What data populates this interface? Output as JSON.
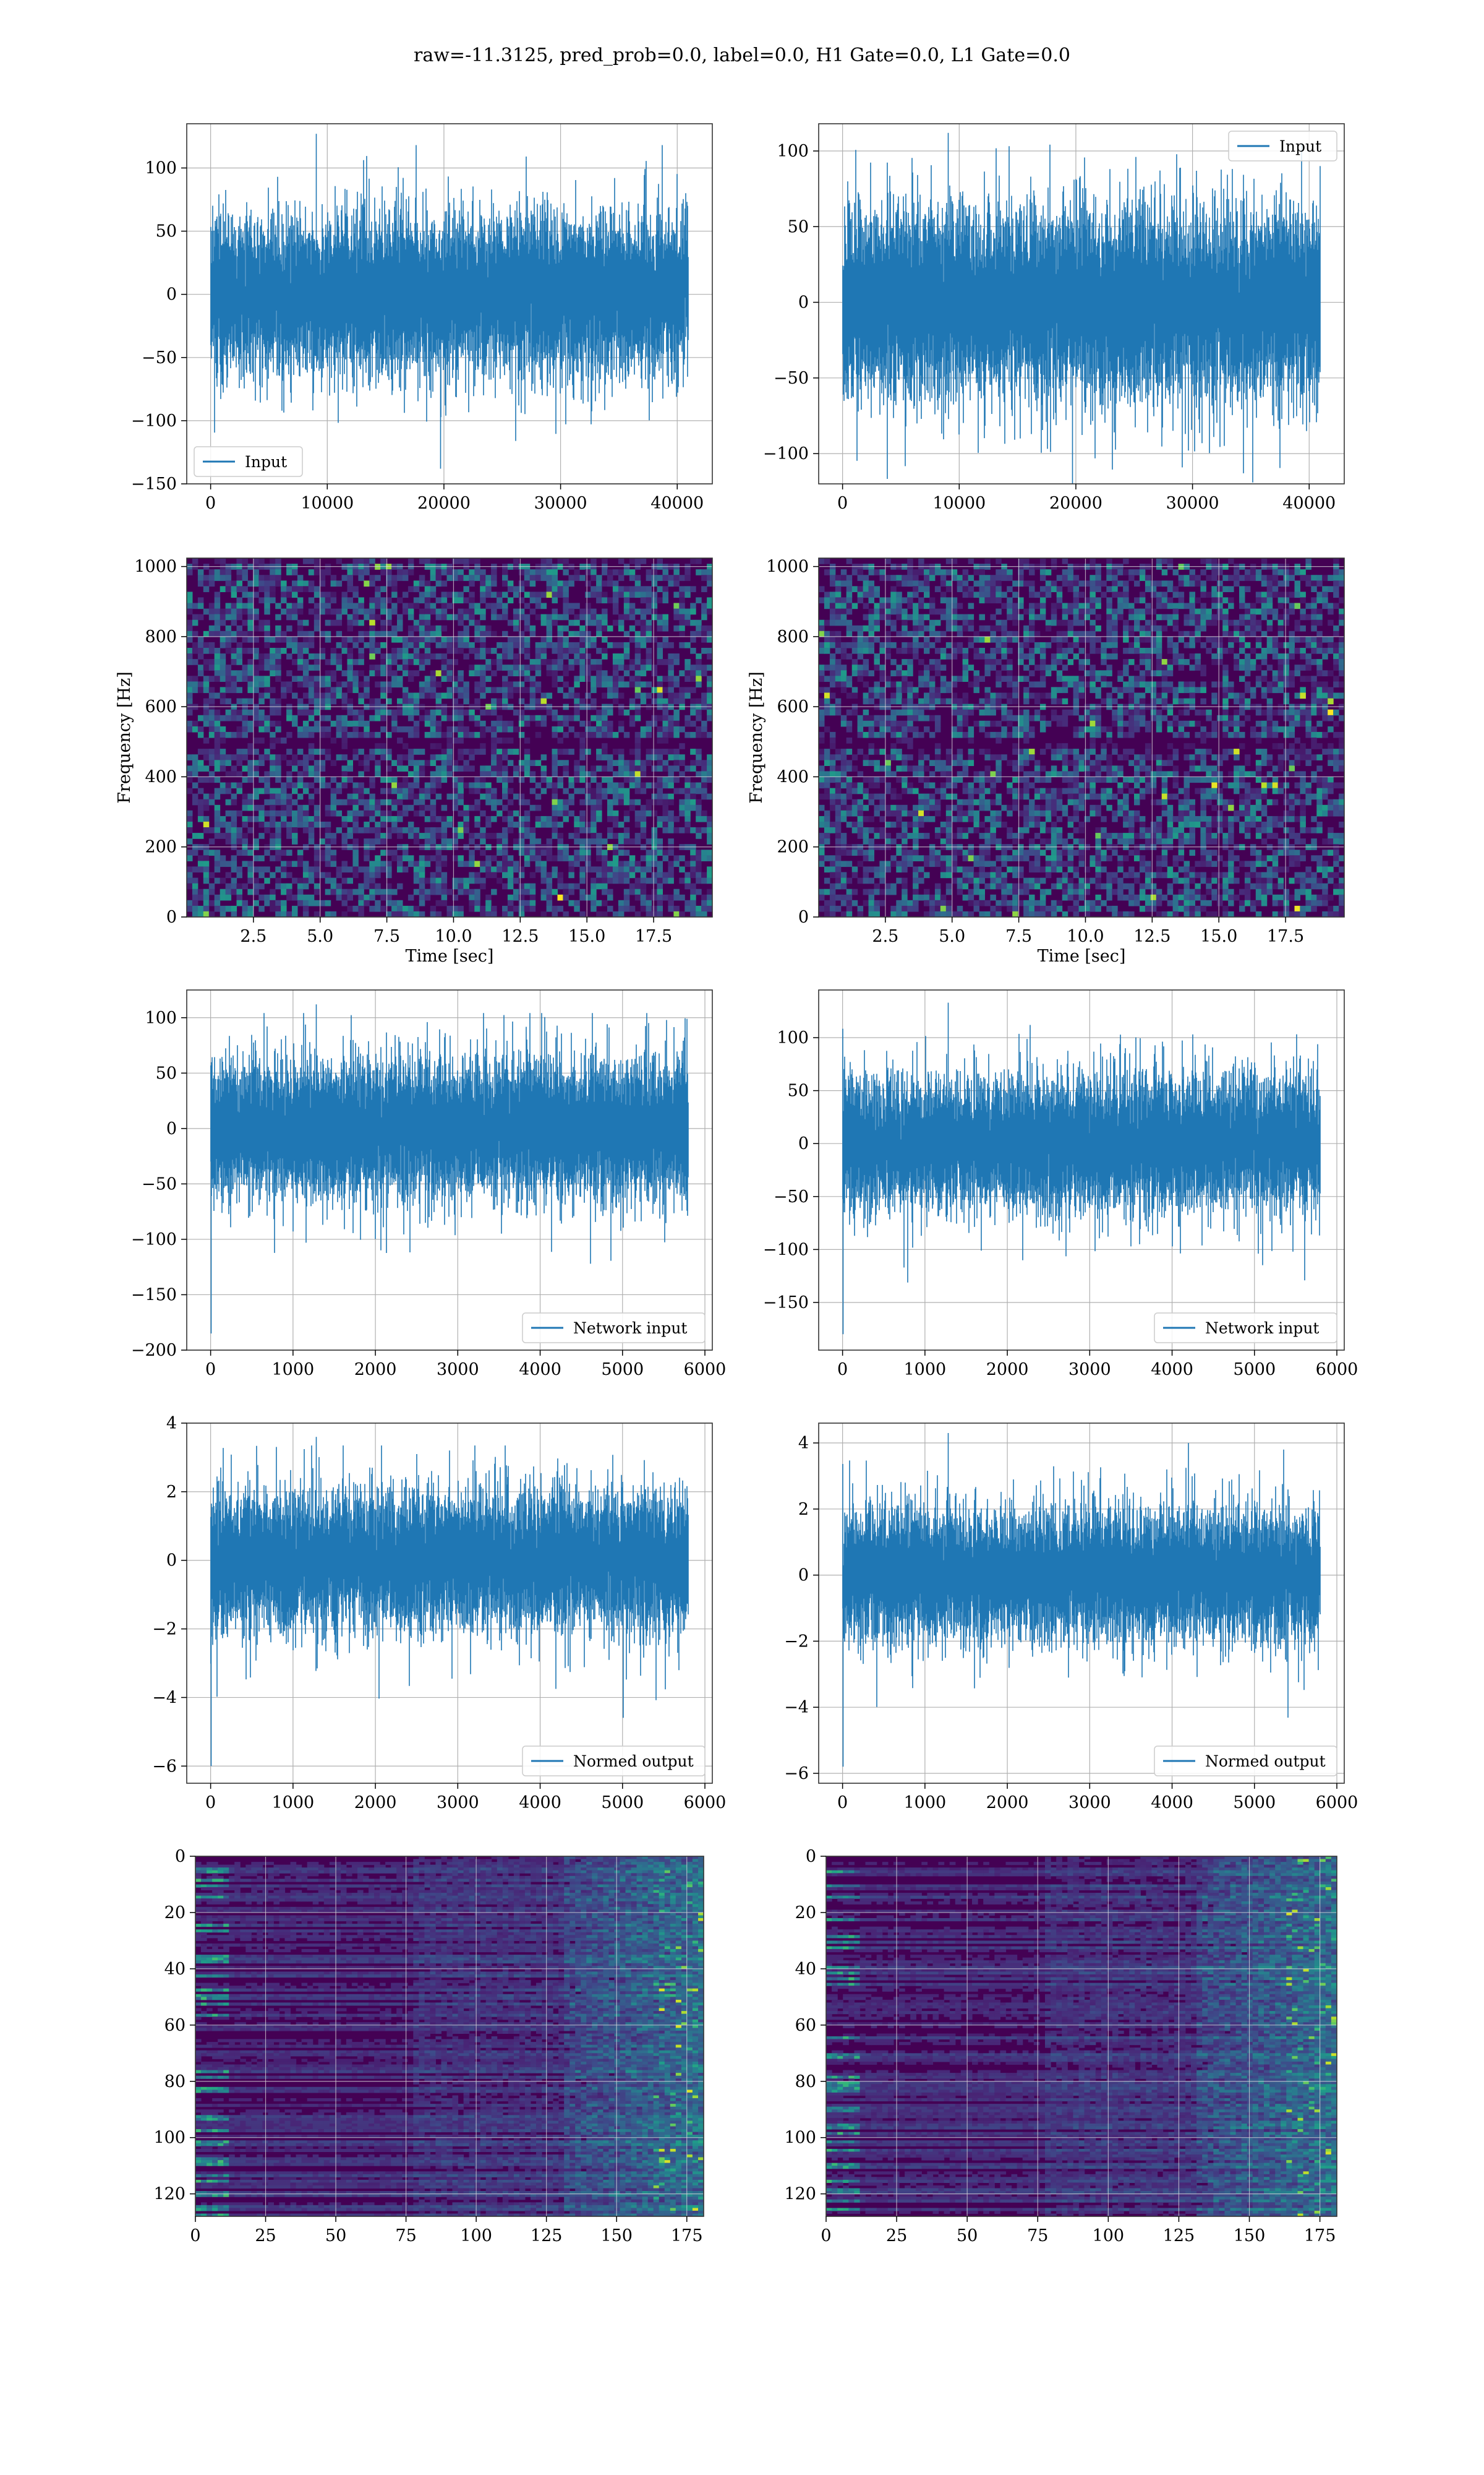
{
  "figure": {
    "suptitle": "raw=-11.3125, pred_prob=0.0, label=0.0, H1 Gate=0.0, L1 Gate=0.0"
  },
  "colors": {
    "line": "#1f77b4",
    "grid": "#b0b0b0",
    "viridis_dark": "#440154",
    "viridis_mid": "#21918c",
    "viridis_bright": "#fde725"
  },
  "chart_data": [
    {
      "id": "raw-input-h1",
      "type": "line",
      "xlim": [
        -2048,
        43008
      ],
      "ylim": [
        -150,
        135
      ],
      "xticks": [
        0,
        10000,
        20000,
        30000,
        40000
      ],
      "yticks": [
        -150,
        -100,
        -50,
        0,
        50,
        100
      ],
      "legend": {
        "label": "Input",
        "loc": "lower-left"
      },
      "series": [
        {
          "name": "Input",
          "n_samples": 40960,
          "x_range": [
            0,
            40960
          ],
          "typical_band": [
            -60,
            60
          ],
          "peaks": [
            127,
            -138
          ]
        }
      ]
    },
    {
      "id": "raw-input-l1",
      "type": "line",
      "xlim": [
        -2048,
        43008
      ],
      "ylim": [
        -120,
        118
      ],
      "xticks": [
        0,
        10000,
        20000,
        30000,
        40000
      ],
      "yticks": [
        -100,
        -50,
        0,
        50,
        100
      ],
      "legend": {
        "label": "Input",
        "loc": "upper-right"
      },
      "series": [
        {
          "name": "Input",
          "n_samples": 40960,
          "x_range": [
            0,
            40960
          ],
          "typical_band": [
            -60,
            60
          ],
          "peaks": [
            112,
            -128
          ]
        }
      ]
    },
    {
      "id": "spectrogram-h1",
      "type": "heatmap",
      "xlim": [
        0,
        19.7
      ],
      "ylim": [
        0,
        1024
      ],
      "xticks": [
        2.5,
        5.0,
        7.5,
        10.0,
        12.5,
        15.0,
        17.5
      ],
      "yticks": [
        0,
        200,
        400,
        600,
        800,
        1000
      ],
      "xlabel": "Time [sec]",
      "ylabel": "Frequency [Hz]",
      "colormap": "viridis"
    },
    {
      "id": "spectrogram-l1",
      "type": "heatmap",
      "xlim": [
        0,
        19.7
      ],
      "ylim": [
        0,
        1024
      ],
      "xticks": [
        2.5,
        5.0,
        7.5,
        10.0,
        12.5,
        15.0,
        17.5
      ],
      "yticks": [
        0,
        200,
        400,
        600,
        800,
        1000
      ],
      "xlabel": "Time [sec]",
      "ylabel": "Frequency [Hz]",
      "colormap": "viridis"
    },
    {
      "id": "network-input-h1",
      "type": "line",
      "xlim": [
        -290,
        6090
      ],
      "ylim": [
        -200,
        125
      ],
      "xticks": [
        0,
        1000,
        2000,
        3000,
        4000,
        5000,
        6000
      ],
      "yticks": [
        -200,
        -150,
        -100,
        -50,
        0,
        50,
        100
      ],
      "legend": {
        "label": "Network input",
        "loc": "lower-right"
      },
      "series": [
        {
          "name": "Network input",
          "n_samples": 5800,
          "x_range": [
            0,
            5800
          ],
          "typical_band": [
            -60,
            60
          ],
          "peaks": [
            112,
            -185
          ]
        }
      ]
    },
    {
      "id": "network-input-l1",
      "type": "line",
      "xlim": [
        -290,
        6090
      ],
      "ylim": [
        -195,
        145
      ],
      "xticks": [
        0,
        1000,
        2000,
        3000,
        4000,
        5000,
        6000
      ],
      "yticks": [
        -150,
        -100,
        -50,
        0,
        50,
        100
      ],
      "legend": {
        "label": "Network input",
        "loc": "lower-right"
      },
      "series": [
        {
          "name": "Network input",
          "n_samples": 5800,
          "x_range": [
            0,
            5800
          ],
          "typical_band": [
            -60,
            60
          ],
          "peaks": [
            133,
            -180
          ]
        }
      ]
    },
    {
      "id": "normed-output-h1",
      "type": "line",
      "xlim": [
        -290,
        6090
      ],
      "ylim": [
        -6.5,
        4.0
      ],
      "xticks": [
        0,
        1000,
        2000,
        3000,
        4000,
        5000,
        6000
      ],
      "yticks": [
        -6,
        -4,
        -2,
        0,
        2,
        4
      ],
      "legend": {
        "label": "Normed output",
        "loc": "lower-right"
      },
      "series": [
        {
          "name": "Normed output",
          "n_samples": 5800,
          "x_range": [
            0,
            5800
          ],
          "typical_band": [
            -1.9,
            1.9
          ],
          "peaks": [
            3.6,
            -6.0
          ]
        }
      ]
    },
    {
      "id": "normed-output-l1",
      "type": "line",
      "xlim": [
        -290,
        6090
      ],
      "ylim": [
        -6.3,
        4.6
      ],
      "xticks": [
        0,
        1000,
        2000,
        3000,
        4000,
        5000,
        6000
      ],
      "yticks": [
        -6,
        -4,
        -2,
        0,
        2,
        4
      ],
      "legend": {
        "label": "Normed output",
        "loc": "lower-right"
      },
      "series": [
        {
          "name": "Normed output",
          "n_samples": 5800,
          "x_range": [
            0,
            5800
          ],
          "typical_band": [
            -1.9,
            1.9
          ],
          "peaks": [
            4.3,
            -5.8
          ]
        }
      ]
    },
    {
      "id": "feature-map-h1",
      "type": "heatmap",
      "xlim": [
        0,
        181
      ],
      "ylim": [
        128,
        0
      ],
      "xticks": [
        0,
        25,
        50,
        75,
        100,
        125,
        150,
        175
      ],
      "yticks": [
        0,
        20,
        40,
        60,
        80,
        100,
        120
      ],
      "colormap": "viridis",
      "shape": [
        128,
        181
      ]
    },
    {
      "id": "feature-map-l1",
      "type": "heatmap",
      "xlim": [
        0,
        181
      ],
      "ylim": [
        128,
        0
      ],
      "xticks": [
        0,
        25,
        50,
        75,
        100,
        125,
        150,
        175
      ],
      "yticks": [
        0,
        20,
        40,
        60,
        80,
        100,
        120
      ],
      "colormap": "viridis",
      "shape": [
        128,
        181
      ]
    }
  ]
}
